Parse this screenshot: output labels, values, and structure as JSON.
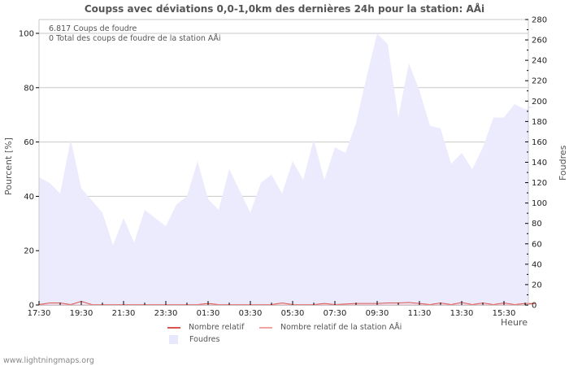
{
  "title": "Coupss avec déviations 0,0-1,0km des dernières 24h pour la station: AÅi",
  "info": {
    "line1": "6.817  Coups de foudre",
    "line2": "0 Total des coups de foudre de la station AÅi"
  },
  "axes": {
    "left_label": "Pourcent   [%]",
    "right_label": "Foudres",
    "x_label": "Heure"
  },
  "legend": {
    "items": [
      {
        "label": "Nombre relatif",
        "color": "#d9534f",
        "type": "line"
      },
      {
        "label": "Nombre relatif de la station AÅi",
        "color": "#f4a3a3",
        "type": "line"
      },
      {
        "label": "Foudres",
        "color": "#e8e8fc",
        "type": "area"
      }
    ]
  },
  "footer": "www.lightningmaps.org",
  "colors": {
    "area_fill": "#ebebfd",
    "grid": "#c8c8c8",
    "relative_line": "#d9534f",
    "station_line": "#f4a3a3"
  },
  "chart_data": {
    "type": "area",
    "title": "Coupss avec déviations 0,0-1,0km des dernières 24h pour la station: AÅi",
    "xlabel": "Heure",
    "ylabel_left": "Pourcent   [%]",
    "ylabel_right": "Foudres",
    "ylim_left": [
      0,
      100
    ],
    "ylim_right": [
      0,
      280
    ],
    "left_ticks": [
      0,
      20,
      40,
      60,
      80,
      100
    ],
    "right_ticks": [
      0,
      20,
      40,
      60,
      80,
      100,
      120,
      140,
      160,
      180,
      200,
      220,
      240,
      260,
      280
    ],
    "x_ticks": [
      "17:30",
      "19:30",
      "21:30",
      "23:30",
      "01:30",
      "03:30",
      "05:30",
      "07:30",
      "09:30",
      "11:30",
      "13:30",
      "15:30"
    ],
    "grid": true,
    "legend_position": "bottom",
    "series": [
      {
        "name": "Foudres",
        "axis": "left_percent",
        "x_hours_from_1730": [
          0,
          0.5,
          1.0,
          1.5,
          2.0,
          3.0,
          3.5,
          4.0,
          4.5,
          5.0,
          6.0,
          6.5,
          7.0,
          7.5,
          8.0,
          8.5,
          9.0,
          10.0,
          10.5,
          11.0,
          11.5,
          12.0,
          12.5,
          13.0,
          13.5,
          14.0,
          14.5,
          15.0,
          15.5,
          16.0,
          16.5,
          17.0,
          17.5,
          18.0,
          18.5,
          19.0,
          19.5,
          20.0,
          20.5,
          21.0,
          21.5,
          22.0,
          22.5,
          23.0,
          23.5
        ],
        "values_percent": [
          47,
          45,
          41,
          61,
          43,
          34,
          22,
          32,
          23,
          35,
          29,
          37,
          40,
          53,
          39,
          35,
          50,
          34,
          45,
          48,
          41,
          53,
          46,
          61,
          46,
          58,
          56,
          67,
          84,
          100,
          96,
          69,
          89,
          79,
          66,
          65,
          52,
          56,
          50,
          58,
          69,
          69,
          74,
          72,
          73
        ]
      },
      {
        "name": "Nombre relatif",
        "axis": "left_percent",
        "x_hours_from_1730": [
          0,
          0.5,
          1.0,
          1.5,
          2.0,
          2.5,
          3.0,
          7.5,
          8.0,
          8.5,
          11.0,
          11.5,
          12.0,
          13.0,
          13.5,
          14.0,
          15.0,
          16.0,
          16.5,
          17.0,
          17.5,
          18.0,
          18.5,
          19.0,
          19.5,
          20.0,
          20.5,
          21.0,
          21.5,
          22.0,
          22.5,
          23.0,
          23.5
        ],
        "values_percent": [
          0,
          0.6,
          0.6,
          0,
          1.2,
          0,
          0,
          0,
          0.4,
          0,
          0,
          0.6,
          0,
          0,
          0.4,
          0,
          0.4,
          0.4,
          0.6,
          0.6,
          0.8,
          0.4,
          0,
          0.6,
          0,
          0.8,
          0,
          0.6,
          0,
          0.6,
          0,
          0.4,
          0.4
        ]
      },
      {
        "name": "Nombre relatif de la station AÅi",
        "axis": "left_percent",
        "x_hours_from_1730": [
          0,
          23.5
        ],
        "values_percent": [
          0,
          0
        ]
      }
    ]
  }
}
